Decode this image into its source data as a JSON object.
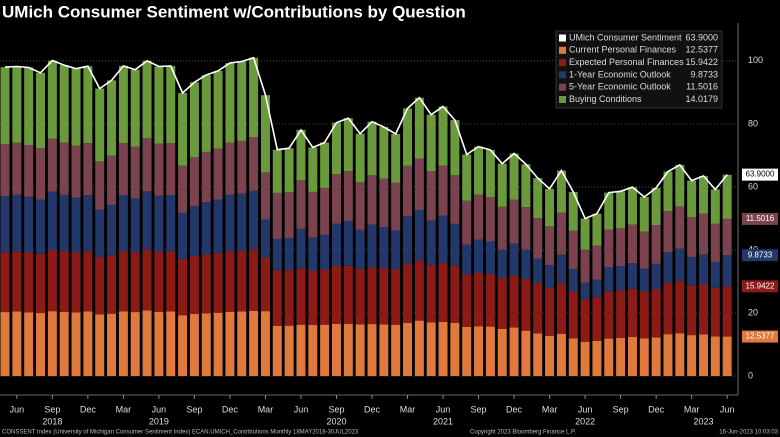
{
  "chart_data": {
    "type": "bar",
    "stacked": true,
    "title": "UMich Consumer Sentiment w/Contributions by Question",
    "categories": [
      null,
      "Jun",
      null,
      null,
      "Sep",
      null,
      null,
      "Dec",
      null,
      null,
      "Mar",
      null,
      null,
      "Jun",
      null,
      null,
      "Sep",
      null,
      null,
      "Dec",
      null,
      null,
      "Mar",
      null,
      null,
      "Jun",
      null,
      null,
      "Sep",
      null,
      null,
      "Dec",
      null,
      null,
      "Mar",
      null,
      null,
      "Jun",
      null,
      null,
      "Sep",
      null,
      null,
      "Dec",
      null,
      null,
      "Mar",
      null,
      null,
      "Jun",
      null,
      null,
      "Sep",
      null,
      null,
      "Dec",
      null,
      null,
      "Mar",
      null,
      null,
      "Jun"
    ],
    "year_ticks": [
      {
        "value": 4,
        "label": "2018"
      },
      {
        "value": 13,
        "label": "2019"
      },
      {
        "value": 28,
        "label": "2020"
      },
      {
        "value": 37,
        "label": "2021"
      },
      {
        "value": 49,
        "label": "2022"
      },
      {
        "value": 59,
        "label": "2023"
      }
    ],
    "ylim": [
      -6,
      112
    ],
    "yticks": [
      0,
      20,
      40,
      60,
      80,
      100
    ],
    "grid": true,
    "legend": "top-right",
    "series": [
      {
        "name": "UMich Consumer Sentiment",
        "type": "line",
        "color": "#ffffff",
        "values": [
          98.0,
          98.2,
          97.9,
          96.2,
          100.1,
          98.6,
          97.5,
          98.3,
          91.2,
          93.8,
          98.4,
          97.2,
          100.0,
          98.2,
          98.4,
          89.8,
          93.2,
          95.5,
          96.8,
          99.3,
          99.8,
          101.0,
          89.1,
          71.8,
          72.3,
          78.1,
          72.5,
          74.1,
          80.4,
          81.8,
          76.9,
          80.7,
          79.0,
          76.8,
          84.9,
          88.3,
          82.9,
          85.5,
          81.2,
          70.3,
          72.8,
          71.7,
          67.4,
          70.6,
          67.2,
          62.8,
          59.4,
          65.2,
          58.4,
          50.0,
          51.5,
          58.2,
          58.6,
          59.9,
          56.8,
          59.7,
          64.9,
          67.0,
          62.0,
          63.5,
          59.2,
          63.9
        ],
        "value_labels": [
          null,
          null,
          null,
          null,
          null,
          null,
          null,
          null,
          null,
          null,
          null,
          null,
          null,
          null,
          null,
          null,
          null,
          null,
          null,
          null,
          null,
          null,
          null,
          null,
          null,
          null,
          null,
          null,
          null,
          null,
          null,
          null,
          null,
          null,
          null,
          null,
          null,
          null,
          null,
          null,
          null,
          null,
          null,
          null,
          null,
          null,
          null,
          null,
          null,
          null,
          null,
          null,
          null,
          null,
          null,
          null,
          null,
          null,
          null,
          null,
          null,
          "63.9000"
        ]
      },
      {
        "name": "Current Personal Finances",
        "type": "bar",
        "color": "#e0793c",
        "values": [
          20.3,
          20.5,
          20.2,
          20.0,
          20.6,
          20.4,
          20.2,
          20.5,
          19.6,
          19.8,
          20.5,
          20.3,
          20.8,
          20.4,
          20.5,
          19.3,
          19.7,
          19.9,
          20.1,
          20.4,
          20.5,
          20.7,
          20.6,
          15.9,
          16.0,
          16.3,
          16.2,
          16.3,
          16.6,
          16.6,
          16.4,
          16.5,
          16.4,
          16.3,
          16.9,
          17.6,
          17.0,
          17.2,
          16.9,
          15.6,
          15.8,
          15.7,
          15.0,
          15.4,
          14.4,
          13.5,
          12.8,
          13.4,
          12.0,
          10.9,
          11.2,
          11.9,
          12.1,
          12.4,
          12.0,
          12.3,
          13.3,
          13.6,
          13.0,
          13.2,
          12.6,
          12.5377
        ]
      },
      {
        "name": "Expected Personal Finances",
        "type": "bar",
        "color": "#8c1b17",
        "values": [
          19.0,
          19.1,
          19.0,
          18.8,
          19.4,
          19.2,
          19.0,
          19.1,
          18.2,
          18.5,
          19.1,
          18.9,
          19.4,
          19.1,
          19.1,
          17.9,
          18.4,
          18.7,
          18.9,
          19.2,
          19.3,
          19.5,
          17.0,
          17.8,
          17.6,
          17.9,
          17.3,
          17.5,
          18.3,
          18.4,
          17.6,
          18.0,
          17.9,
          17.6,
          18.8,
          19.1,
          18.3,
          18.6,
          18.1,
          16.6,
          16.9,
          16.7,
          16.1,
          16.5,
          16.4,
          15.9,
          15.2,
          16.1,
          14.9,
          13.5,
          13.8,
          15.0,
          15.1,
          15.3,
          14.8,
          15.3,
          16.2,
          16.5,
          15.8,
          16.0,
          15.4,
          15.9422
        ]
      },
      {
        "name": "1-Year Economic Outlook",
        "type": "bar",
        "color": "#23386a",
        "values": [
          17.8,
          17.9,
          17.7,
          17.2,
          18.5,
          17.9,
          17.4,
          17.8,
          15.0,
          16.0,
          17.8,
          17.3,
          18.4,
          17.7,
          17.8,
          14.6,
          15.8,
          16.6,
          17.0,
          17.9,
          18.1,
          18.6,
          12.0,
          9.8,
          10.2,
          12.5,
          10.5,
          11.0,
          13.5,
          14.2,
          12.4,
          13.6,
          13.0,
          12.3,
          15.0,
          16.0,
          14.0,
          15.1,
          13.3,
          9.5,
          10.6,
          10.3,
          9.0,
          10.1,
          9.3,
          7.9,
          7.2,
          9.0,
          7.1,
          5.2,
          5.6,
          7.6,
          7.7,
          8.1,
          7.3,
          8.0,
          9.8,
          10.3,
          9.0,
          9.4,
          8.2,
          9.8733
        ]
      },
      {
        "name": "5-Year Economic Outlook",
        "type": "bar",
        "color": "#7b4350",
        "values": [
          16.5,
          16.5,
          16.4,
          16.3,
          16.8,
          16.6,
          16.5,
          16.5,
          15.3,
          15.6,
          16.5,
          16.3,
          16.9,
          16.5,
          16.5,
          15.0,
          15.5,
          15.9,
          16.2,
          16.6,
          16.7,
          17.0,
          15.0,
          14.6,
          14.5,
          15.4,
          14.4,
          14.9,
          15.6,
          15.8,
          15.1,
          15.6,
          15.3,
          15.1,
          16.0,
          16.3,
          15.7,
          15.9,
          15.4,
          13.9,
          14.3,
          14.1,
          13.6,
          14.0,
          13.5,
          12.8,
          12.3,
          13.3,
          12.1,
          10.5,
          10.8,
          12.0,
          12.0,
          12.3,
          11.7,
          12.3,
          13.0,
          13.4,
          12.6,
          12.9,
          12.1,
          11.5016
        ]
      },
      {
        "name": "Buying Conditions",
        "type": "bar",
        "color": "#6a9a3b",
        "values": [
          24.4,
          24.2,
          24.6,
          23.9,
          24.8,
          24.5,
          24.4,
          24.4,
          23.1,
          23.9,
          24.5,
          24.4,
          24.5,
          24.5,
          24.5,
          23.0,
          23.8,
          24.4,
          24.6,
          25.2,
          25.2,
          25.2,
          24.5,
          13.7,
          14.0,
          16.0,
          14.1,
          14.4,
          16.4,
          16.8,
          15.4,
          17.0,
          16.4,
          15.5,
          18.2,
          19.3,
          17.9,
          18.7,
          17.5,
          14.7,
          15.2,
          14.9,
          13.7,
          14.6,
          13.6,
          12.7,
          11.9,
          13.4,
          12.3,
          9.9,
          10.1,
          11.7,
          11.7,
          11.8,
          11.0,
          11.8,
          12.6,
          13.2,
          11.6,
          12.0,
          10.9,
          14.0179
        ]
      }
    ],
    "footer": [
      "CONSSENT Index (University of Michigan Consumer Sentiment Index) ECAN.UMICH_Contributions Monthly 18MAY2018-30JUL2023",
      "Copyright 2023 Bloomberg Finance L.P.",
      "16-Jun-2023 10:03:03"
    ]
  }
}
